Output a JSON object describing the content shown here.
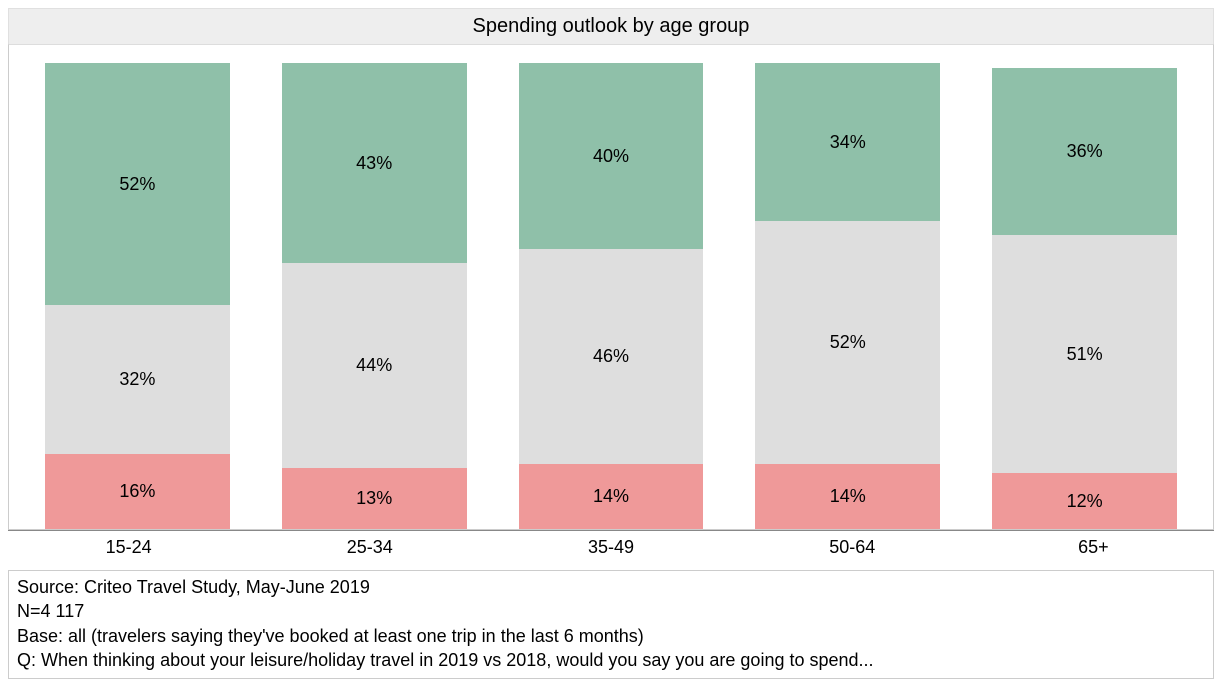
{
  "chart": {
    "type": "stacked-bar-100",
    "title": "Spending outlook by age group",
    "title_fontsize": 20,
    "background_color": "#ffffff",
    "title_bg_color": "#eeeeee",
    "border_color": "#cccccc",
    "axis_line_color": "#888888",
    "label_fontsize": 18,
    "value_label_fontsize": 18,
    "text_color": "#000000",
    "bar_width_ratio": 0.78,
    "categories": [
      "15-24",
      "25-34",
      "35-49",
      "50-64",
      "65+"
    ],
    "series_order_top_to_bottom": [
      "more",
      "same",
      "less"
    ],
    "series_colors": {
      "more": "#8fc0a9",
      "same": "#dedede",
      "less": "#ef9999"
    },
    "data": [
      {
        "category": "15-24",
        "more": 52,
        "same": 32,
        "less": 16
      },
      {
        "category": "25-34",
        "more": 43,
        "same": 44,
        "less": 13
      },
      {
        "category": "35-49",
        "more": 40,
        "same": 46,
        "less": 14
      },
      {
        "category": "50-64",
        "more": 34,
        "same": 52,
        "less": 14
      },
      {
        "category": "65+",
        "more": 36,
        "same": 51,
        "less": 12
      }
    ]
  },
  "footer": {
    "line1": "Source: Criteo Travel Study, May-June 2019",
    "line2": "N=4 117",
    "line3": "Base: all (travelers saying they've booked at least one trip in the last 6 months)",
    "line4": "Q: When thinking about your leisure/holiday travel in 2019 vs 2018, would you say you are going to spend...",
    "fontsize": 18
  }
}
